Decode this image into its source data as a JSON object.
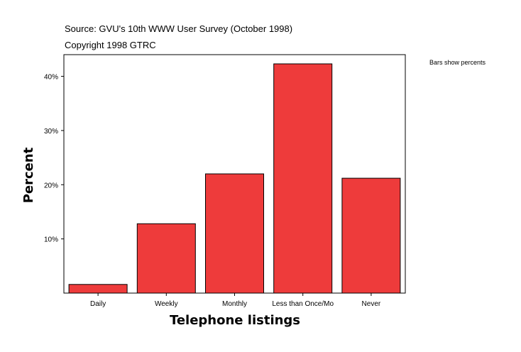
{
  "header": {
    "source": "Source: GVU's 10th WWW User Survey (October 1998)",
    "copyright": "Copyright 1998 GTRC"
  },
  "note": "Bars show percents",
  "chart_data": {
    "type": "bar",
    "categories": [
      "Daily",
      "Weekly",
      "Monthly",
      "Less than Once/Mo",
      "Never"
    ],
    "values": [
      1.6,
      12.8,
      22.0,
      42.3,
      21.2
    ],
    "xlabel": "Telephone listings",
    "ylabel": "Percent",
    "ylim": [
      0,
      44
    ],
    "yticks": [
      10,
      20,
      30,
      40
    ],
    "ytick_labels": [
      "10%",
      "20%",
      "30%",
      "40%"
    ],
    "bar_color": "#ee3b3b",
    "grid": false
  }
}
